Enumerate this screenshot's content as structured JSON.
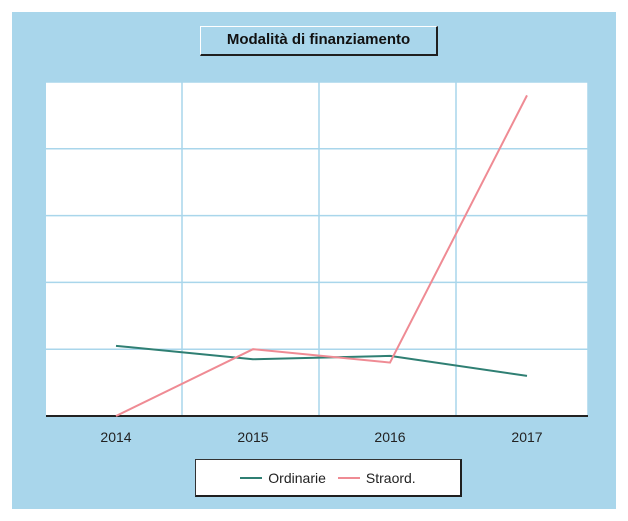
{
  "chart_data": {
    "type": "line",
    "title": "Modalità di finanziamento",
    "x": [
      "2014",
      "2015",
      "2016",
      "2017"
    ],
    "ylim": [
      0,
      100
    ],
    "grid": true,
    "legend_position": "bottom",
    "series": [
      {
        "name": "Ordinarie",
        "color": "#2f7f73",
        "values": [
          21,
          17,
          18,
          12
        ]
      },
      {
        "name": "Straord.",
        "color": "#ef8b94",
        "values": [
          0,
          20,
          16,
          96
        ]
      }
    ]
  },
  "colors": {
    "background": "#a9d6eb",
    "plot_area": "#ffffff",
    "gridline": "#a9d6eb",
    "axis": "#222222"
  }
}
